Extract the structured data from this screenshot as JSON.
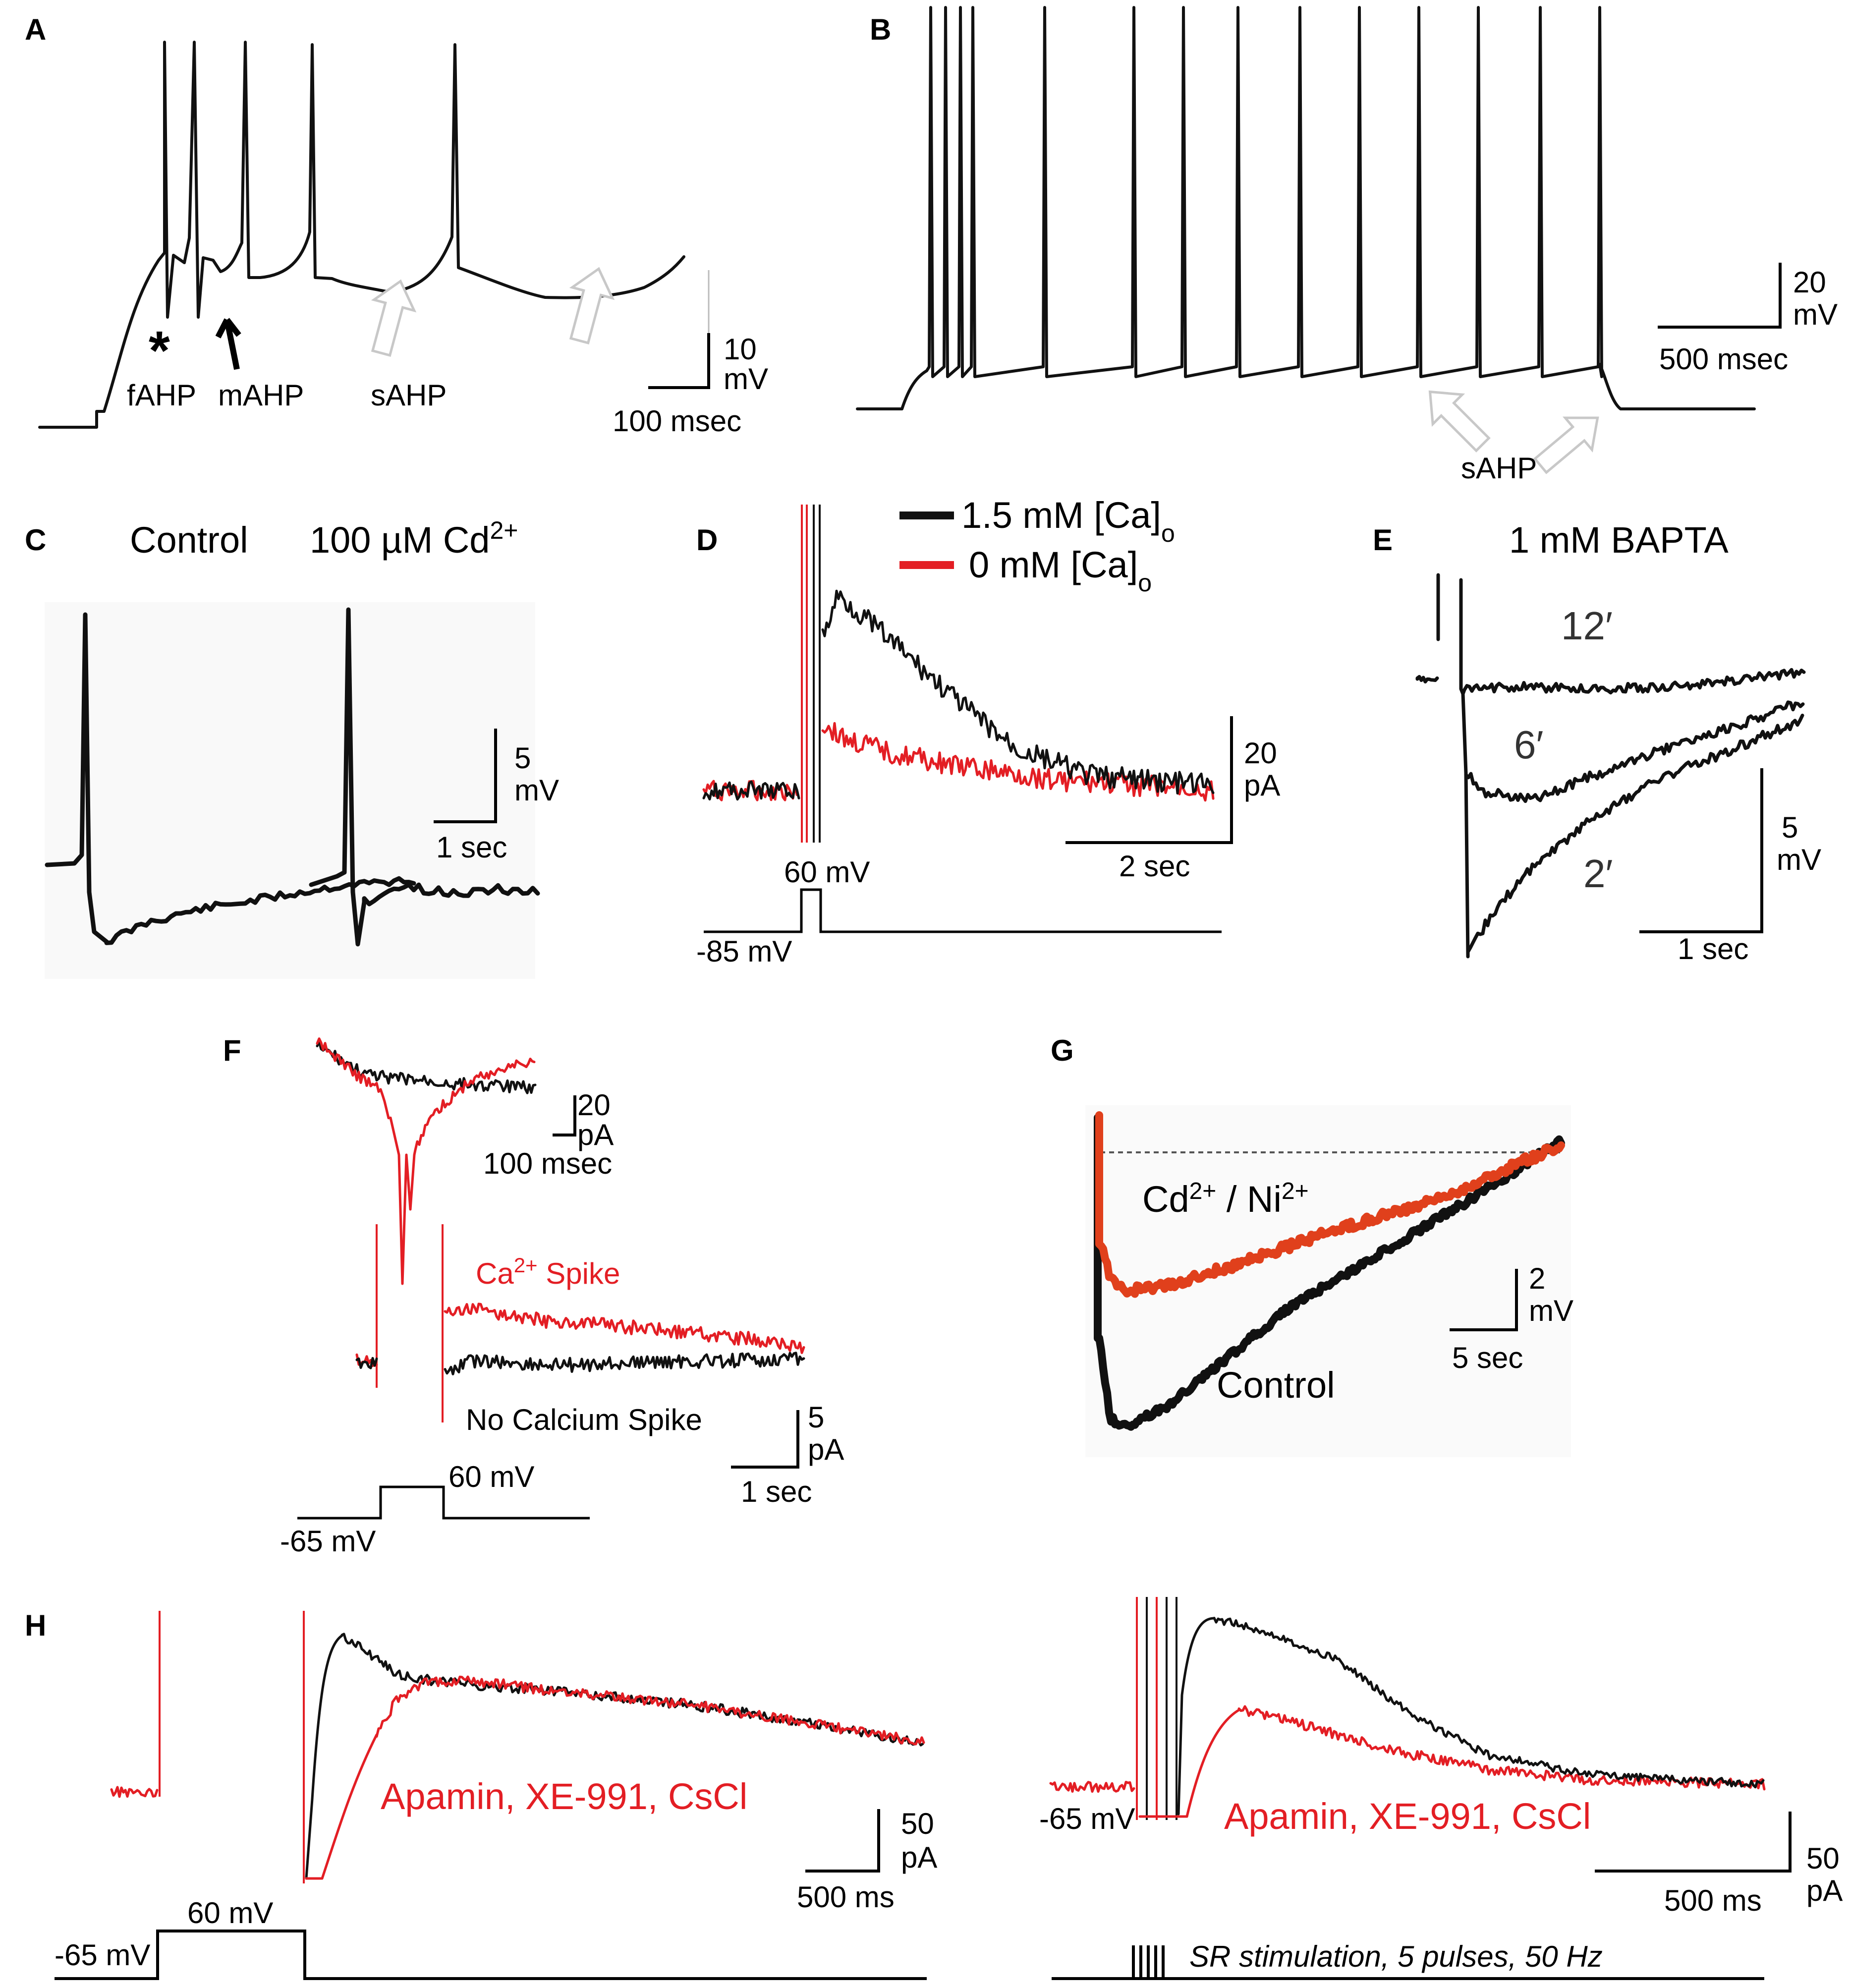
{
  "panels": {
    "A": {
      "letter": "A",
      "labels": {
        "fahp": "fAHP",
        "mahp": "mAHP",
        "sahp": "sAHP",
        "star": "*"
      },
      "scale": {
        "y": "10",
        "y_unit": "mV",
        "x": "100 msec"
      }
    },
    "B": {
      "letter": "B",
      "labels": {
        "sahp": "sAHP"
      },
      "scale": {
        "y": "20",
        "y_unit": "mV",
        "x": "500 msec"
      }
    },
    "C": {
      "letter": "C",
      "titles": {
        "control": "Control",
        "cd_prefix": "100 µM Cd",
        "cd_sup": "2+"
      },
      "scale": {
        "y": "5",
        "y_unit": "mV",
        "x": "1 sec"
      }
    },
    "D": {
      "letter": "D",
      "legend": {
        "black_main": "1.5 mM [Ca]",
        "black_sub": "o",
        "red_main": "0 mM [Ca]",
        "red_sub": "o"
      },
      "scale": {
        "y": "20",
        "y_unit": "pA",
        "x": "2 sec"
      },
      "protocol": {
        "step": "60 mV",
        "hold": "-85 mV"
      }
    },
    "E": {
      "letter": "E",
      "title": "1 mM BAPTA",
      "time_labels": {
        "t12": "12′",
        "t6": "6′",
        "t2": "2′"
      },
      "scale": {
        "y": "5",
        "y_unit": "mV",
        "x": "1 sec"
      }
    },
    "F": {
      "letter": "F",
      "inset_scale": {
        "y": "20",
        "y_unit": "pA",
        "x": "100 msec"
      },
      "labels": {
        "ca_prefix": "Ca",
        "ca_sup": "2+",
        "ca_suffix": " Spike",
        "no_ca": "No Calcium Spike"
      },
      "scale": {
        "y": "5",
        "y_unit": "pA",
        "x": "1 sec"
      },
      "protocol": {
        "step": "60 mV",
        "hold": "-65 mV"
      }
    },
    "G": {
      "letter": "G",
      "labels": {
        "cd": "Cd",
        "cd_sup": "2+",
        "slash": " / Ni",
        "ni_sup": "2+",
        "control": "Control"
      },
      "scale": {
        "y": "2",
        "y_unit": "mV",
        "x": "5 sec"
      }
    },
    "H": {
      "letter": "H",
      "left": {
        "drugs": "Apamin, XE-991, CsCl",
        "scale": {
          "y": "50",
          "y_unit": "pA",
          "x": "500 ms"
        },
        "protocol": {
          "step": "60 mV",
          "hold": "-65 mV"
        }
      },
      "right": {
        "drugs": "Apamin, XE-991, CsCl",
        "hold": "-65 mV",
        "scale": {
          "y": "50",
          "y_unit": "pA",
          "x": "500 ms"
        },
        "stimulus": "SR stimulation, 5 pulses, 50 Hz"
      }
    }
  },
  "colors": {
    "black": "#111111",
    "red": "#e31e24",
    "orange_red": "#e0401c",
    "arrow_gray": "#c8c8c8"
  }
}
